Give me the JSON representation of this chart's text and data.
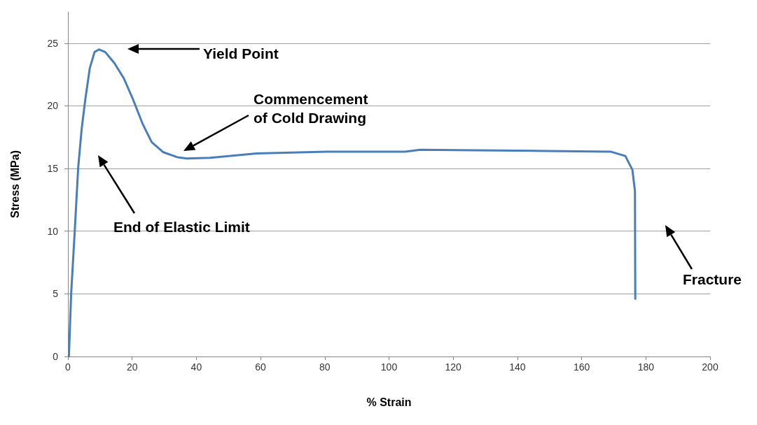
{
  "chart_data": {
    "type": "line",
    "xlabel": "% Strain",
    "ylabel": "Stress (MPa)",
    "xlim": [
      0,
      200
    ],
    "xticks": [
      0,
      20,
      40,
      60,
      80,
      100,
      120,
      140,
      160,
      180,
      200
    ],
    "ylim": [
      0,
      27.5
    ],
    "yticks": [
      0,
      5,
      10,
      15,
      20,
      25
    ],
    "grid": "y",
    "marker": "none",
    "line_style": "solid",
    "series": [
      {
        "color": "#4a7ebb",
        "x": [
          0.3,
          1.0,
          2.1,
          3.2,
          4.3,
          5.4,
          6.8,
          8.3,
          9.7,
          11.6,
          14.5,
          17.4,
          20.3,
          23.2,
          26.1,
          29.7,
          34.1,
          37.0,
          44.3,
          58.8,
          80.6,
          105,
          109.7,
          127,
          149,
          169,
          173.6,
          175.8,
          176.6,
          176.7
        ],
        "values": [
          0,
          5.0,
          9.9,
          15.1,
          18.2,
          20.5,
          23.0,
          24.3,
          24.5,
          24.3,
          23.4,
          22.2,
          20.5,
          18.6,
          17.1,
          16.3,
          15.9,
          15.8,
          15.85,
          16.2,
          16.35,
          16.35,
          16.5,
          16.45,
          16.4,
          16.35,
          16.0,
          14.9,
          13.2,
          4.6
        ]
      }
    ],
    "annotations": [
      "Yield Point",
      "Commencement\nof Cold Drawing",
      "End of Elastic Limit",
      "Fracture"
    ]
  }
}
